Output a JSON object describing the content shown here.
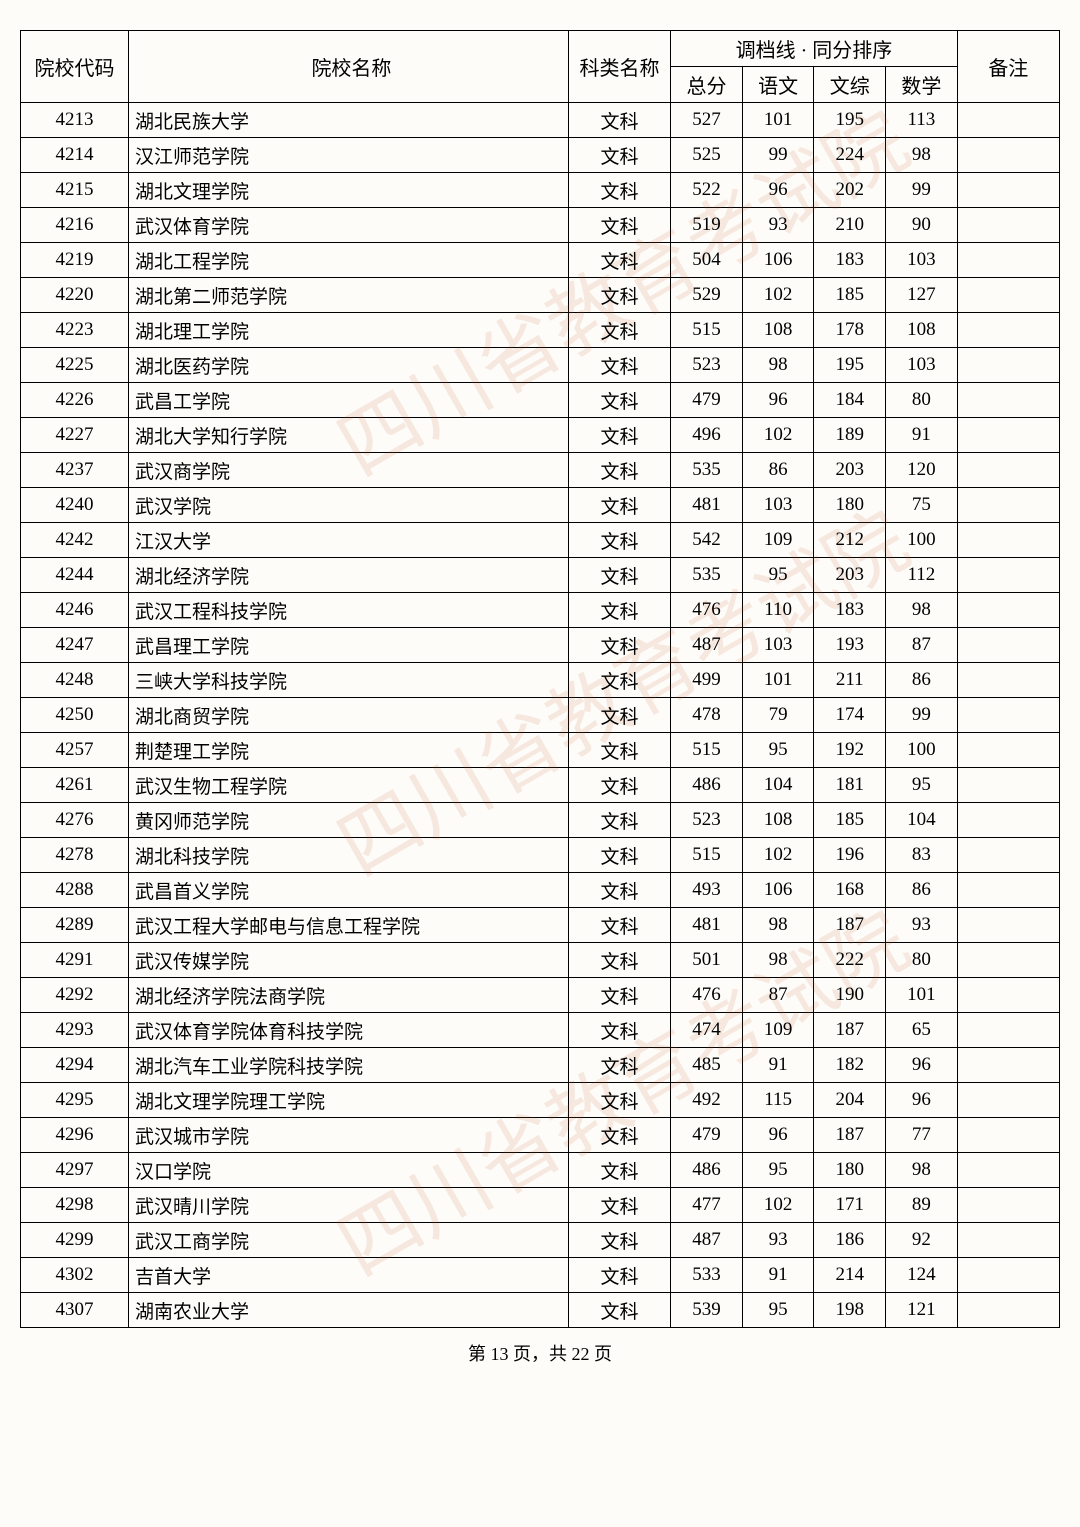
{
  "header": {
    "col_code": "院校代码",
    "col_name": "院校名称",
    "col_subject": "科类名称",
    "col_score_group": "调档线 · 同分排序",
    "col_total": "总分",
    "col_chinese": "语文",
    "col_wenzong": "文综",
    "col_math": "数学",
    "col_remark": "备注"
  },
  "rows": [
    {
      "code": "4213",
      "name": "湖北民族大学",
      "subject": "文科",
      "total": "527",
      "chinese": "101",
      "wenzong": "195",
      "math": "113",
      "remark": ""
    },
    {
      "code": "4214",
      "name": "汉江师范学院",
      "subject": "文科",
      "total": "525",
      "chinese": "99",
      "wenzong": "224",
      "math": "98",
      "remark": ""
    },
    {
      "code": "4215",
      "name": "湖北文理学院",
      "subject": "文科",
      "total": "522",
      "chinese": "96",
      "wenzong": "202",
      "math": "99",
      "remark": ""
    },
    {
      "code": "4216",
      "name": "武汉体育学院",
      "subject": "文科",
      "total": "519",
      "chinese": "93",
      "wenzong": "210",
      "math": "90",
      "remark": ""
    },
    {
      "code": "4219",
      "name": "湖北工程学院",
      "subject": "文科",
      "total": "504",
      "chinese": "106",
      "wenzong": "183",
      "math": "103",
      "remark": ""
    },
    {
      "code": "4220",
      "name": "湖北第二师范学院",
      "subject": "文科",
      "total": "529",
      "chinese": "102",
      "wenzong": "185",
      "math": "127",
      "remark": ""
    },
    {
      "code": "4223",
      "name": "湖北理工学院",
      "subject": "文科",
      "total": "515",
      "chinese": "108",
      "wenzong": "178",
      "math": "108",
      "remark": ""
    },
    {
      "code": "4225",
      "name": "湖北医药学院",
      "subject": "文科",
      "total": "523",
      "chinese": "98",
      "wenzong": "195",
      "math": "103",
      "remark": ""
    },
    {
      "code": "4226",
      "name": "武昌工学院",
      "subject": "文科",
      "total": "479",
      "chinese": "96",
      "wenzong": "184",
      "math": "80",
      "remark": ""
    },
    {
      "code": "4227",
      "name": "湖北大学知行学院",
      "subject": "文科",
      "total": "496",
      "chinese": "102",
      "wenzong": "189",
      "math": "91",
      "remark": ""
    },
    {
      "code": "4237",
      "name": "武汉商学院",
      "subject": "文科",
      "total": "535",
      "chinese": "86",
      "wenzong": "203",
      "math": "120",
      "remark": ""
    },
    {
      "code": "4240",
      "name": "武汉学院",
      "subject": "文科",
      "total": "481",
      "chinese": "103",
      "wenzong": "180",
      "math": "75",
      "remark": ""
    },
    {
      "code": "4242",
      "name": "江汉大学",
      "subject": "文科",
      "total": "542",
      "chinese": "109",
      "wenzong": "212",
      "math": "100",
      "remark": ""
    },
    {
      "code": "4244",
      "name": "湖北经济学院",
      "subject": "文科",
      "total": "535",
      "chinese": "95",
      "wenzong": "203",
      "math": "112",
      "remark": ""
    },
    {
      "code": "4246",
      "name": "武汉工程科技学院",
      "subject": "文科",
      "total": "476",
      "chinese": "110",
      "wenzong": "183",
      "math": "98",
      "remark": ""
    },
    {
      "code": "4247",
      "name": "武昌理工学院",
      "subject": "文科",
      "total": "487",
      "chinese": "103",
      "wenzong": "193",
      "math": "87",
      "remark": ""
    },
    {
      "code": "4248",
      "name": "三峡大学科技学院",
      "subject": "文科",
      "total": "499",
      "chinese": "101",
      "wenzong": "211",
      "math": "86",
      "remark": ""
    },
    {
      "code": "4250",
      "name": "湖北商贸学院",
      "subject": "文科",
      "total": "478",
      "chinese": "79",
      "wenzong": "174",
      "math": "99",
      "remark": ""
    },
    {
      "code": "4257",
      "name": "荆楚理工学院",
      "subject": "文科",
      "total": "515",
      "chinese": "95",
      "wenzong": "192",
      "math": "100",
      "remark": ""
    },
    {
      "code": "4261",
      "name": "武汉生物工程学院",
      "subject": "文科",
      "total": "486",
      "chinese": "104",
      "wenzong": "181",
      "math": "95",
      "remark": ""
    },
    {
      "code": "4276",
      "name": "黄冈师范学院",
      "subject": "文科",
      "total": "523",
      "chinese": "108",
      "wenzong": "185",
      "math": "104",
      "remark": ""
    },
    {
      "code": "4278",
      "name": "湖北科技学院",
      "subject": "文科",
      "total": "515",
      "chinese": "102",
      "wenzong": "196",
      "math": "83",
      "remark": ""
    },
    {
      "code": "4288",
      "name": "武昌首义学院",
      "subject": "文科",
      "total": "493",
      "chinese": "106",
      "wenzong": "168",
      "math": "86",
      "remark": ""
    },
    {
      "code": "4289",
      "name": "武汉工程大学邮电与信息工程学院",
      "subject": "文科",
      "total": "481",
      "chinese": "98",
      "wenzong": "187",
      "math": "93",
      "remark": ""
    },
    {
      "code": "4291",
      "name": "武汉传媒学院",
      "subject": "文科",
      "total": "501",
      "chinese": "98",
      "wenzong": "222",
      "math": "80",
      "remark": ""
    },
    {
      "code": "4292",
      "name": "湖北经济学院法商学院",
      "subject": "文科",
      "total": "476",
      "chinese": "87",
      "wenzong": "190",
      "math": "101",
      "remark": ""
    },
    {
      "code": "4293",
      "name": "武汉体育学院体育科技学院",
      "subject": "文科",
      "total": "474",
      "chinese": "109",
      "wenzong": "187",
      "math": "65",
      "remark": ""
    },
    {
      "code": "4294",
      "name": "湖北汽车工业学院科技学院",
      "subject": "文科",
      "total": "485",
      "chinese": "91",
      "wenzong": "182",
      "math": "96",
      "remark": ""
    },
    {
      "code": "4295",
      "name": "湖北文理学院理工学院",
      "subject": "文科",
      "total": "492",
      "chinese": "115",
      "wenzong": "204",
      "math": "96",
      "remark": ""
    },
    {
      "code": "4296",
      "name": "武汉城市学院",
      "subject": "文科",
      "total": "479",
      "chinese": "96",
      "wenzong": "187",
      "math": "77",
      "remark": ""
    },
    {
      "code": "4297",
      "name": "汉口学院",
      "subject": "文科",
      "total": "486",
      "chinese": "95",
      "wenzong": "180",
      "math": "98",
      "remark": ""
    },
    {
      "code": "4298",
      "name": "武汉晴川学院",
      "subject": "文科",
      "total": "477",
      "chinese": "102",
      "wenzong": "171",
      "math": "89",
      "remark": ""
    },
    {
      "code": "4299",
      "name": "武汉工商学院",
      "subject": "文科",
      "total": "487",
      "chinese": "93",
      "wenzong": "186",
      "math": "92",
      "remark": ""
    },
    {
      "code": "4302",
      "name": "吉首大学",
      "subject": "文科",
      "total": "533",
      "chinese": "91",
      "wenzong": "214",
      "math": "124",
      "remark": ""
    },
    {
      "code": "4307",
      "name": "湖南农业大学",
      "subject": "文科",
      "total": "539",
      "chinese": "95",
      "wenzong": "198",
      "math": "121",
      "remark": ""
    }
  ],
  "footer": {
    "page_text": "第 13 页，共 22 页"
  },
  "watermark_text": "四川省教育考试院"
}
